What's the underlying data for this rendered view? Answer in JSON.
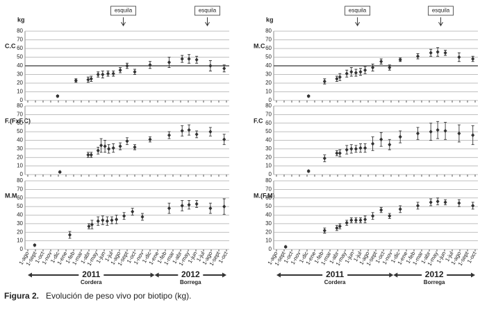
{
  "chart_data": [
    {
      "type": "scatter",
      "title": "C.C",
      "ylabel": "kg",
      "ylim": [
        0,
        80
      ],
      "yticks": [
        0,
        10,
        20,
        30,
        40,
        50,
        60,
        70,
        80
      ],
      "xlim": [
        0,
        26
      ],
      "xticks": [
        0,
        1,
        2,
        3,
        4,
        5,
        6,
        7,
        8,
        9,
        10,
        11,
        12,
        13,
        14,
        15,
        16,
        17,
        18,
        19,
        20,
        21,
        22,
        23,
        24,
        25,
        26
      ],
      "grid": true,
      "reference_line": 40,
      "color": "#333333",
      "annotations": [
        {
          "text": "esquila",
          "x": 12.5
        },
        {
          "text": "esquila",
          "x": 23.5
        }
      ],
      "x": [
        3.9,
        6.3,
        7.9,
        8.3,
        9.2,
        9.8,
        10.5,
        11.2,
        12.1,
        13.0,
        14.0,
        16.0,
        18.5,
        20.2,
        21.1,
        22.1,
        23.9,
        25.7
      ],
      "values": [
        5,
        23,
        24,
        25,
        30,
        30,
        31,
        31,
        35,
        40,
        33,
        41,
        44,
        48,
        48,
        47,
        40,
        37
      ],
      "errors": [
        1,
        2,
        3,
        3,
        3,
        4,
        3,
        3,
        3,
        3,
        3,
        4,
        6,
        4,
        5,
        4,
        6,
        4
      ]
    },
    {
      "type": "scatter",
      "title": "M.C",
      "ylabel": "kg",
      "ylim": [
        0,
        80
      ],
      "yticks": [
        0,
        10,
        20,
        30,
        40,
        50,
        60,
        70,
        80
      ],
      "xlim": [
        0,
        26
      ],
      "xticks": [
        0,
        1,
        2,
        3,
        4,
        5,
        6,
        7,
        8,
        9,
        10,
        11,
        12,
        13,
        14,
        15,
        16,
        17,
        18,
        19,
        20,
        21,
        22,
        23,
        24,
        25,
        26
      ],
      "grid": true,
      "reference_line": 40,
      "color": "#333333",
      "annotations": [
        {
          "text": "esquila",
          "x": 10.6
        },
        {
          "text": "esquila",
          "x": 21.5
        }
      ],
      "x": [
        4.2,
        6.3,
        7.9,
        8.3,
        9.2,
        9.8,
        10.4,
        11.0,
        11.6,
        12.6,
        13.7,
        14.8,
        16.2,
        18.5,
        20.2,
        21.1,
        22.1,
        23.9,
        25.7
      ],
      "values": [
        5,
        22,
        25,
        27,
        31,
        33,
        32,
        33,
        35,
        38,
        45,
        38,
        47,
        51,
        55,
        56,
        55,
        50,
        48
      ],
      "errors": [
        1,
        3,
        3,
        4,
        4,
        5,
        4,
        4,
        4,
        4,
        3,
        3,
        2,
        3,
        4,
        5,
        3,
        5,
        3
      ]
    },
    {
      "type": "scatter",
      "title": "F.(FxF.C)",
      "ylim": [
        0,
        80
      ],
      "yticks": [
        0,
        10,
        20,
        30,
        40,
        50,
        60,
        70,
        80
      ],
      "xlim": [
        0,
        26
      ],
      "xticks": [
        0,
        1,
        2,
        3,
        4,
        5,
        6,
        7,
        8,
        9,
        10,
        11,
        12,
        13,
        14,
        15,
        16,
        17,
        18,
        19,
        20,
        21,
        22,
        23,
        24,
        25,
        26
      ],
      "grid": true,
      "color": "#333333",
      "x": [
        4.2,
        7.9,
        8.3,
        9.2,
        9.6,
        10.1,
        10.6,
        11.2,
        12.1,
        13.0,
        14.0,
        16.0,
        18.5,
        20.2,
        21.1,
        22.1,
        23.9,
        25.7
      ],
      "values": [
        3,
        23,
        23,
        28,
        34,
        33,
        30,
        31,
        33,
        39,
        32,
        41,
        46,
        51,
        52,
        47,
        50,
        41
      ],
      "errors": [
        1,
        3,
        3,
        4,
        8,
        7,
        5,
        5,
        4,
        4,
        3,
        3,
        4,
        6,
        6,
        4,
        5,
        6
      ]
    },
    {
      "type": "scatter",
      "title": "F.C",
      "ylim": [
        0,
        80
      ],
      "yticks": [
        0,
        10,
        20,
        30,
        40,
        50,
        60,
        70,
        80
      ],
      "xlim": [
        0,
        26
      ],
      "xticks": [
        0,
        1,
        2,
        3,
        4,
        5,
        6,
        7,
        8,
        9,
        10,
        11,
        12,
        13,
        14,
        15,
        16,
        17,
        18,
        19,
        20,
        21,
        22,
        23,
        24,
        25,
        26
      ],
      "grid": true,
      "color": "#333333",
      "x": [
        4.2,
        6.3,
        7.9,
        8.3,
        9.2,
        9.8,
        10.4,
        11.0,
        11.6,
        12.6,
        13.7,
        14.8,
        16.2,
        18.5,
        20.2,
        21.1,
        22.1,
        23.9,
        25.7
      ],
      "values": [
        4,
        19,
        25,
        25,
        29,
        30,
        30,
        31,
        31,
        36,
        41,
        35,
        44,
        48,
        50,
        52,
        51,
        48,
        46
      ],
      "errors": [
        1,
        4,
        3,
        4,
        5,
        5,
        4,
        5,
        5,
        8,
        8,
        6,
        7,
        7,
        10,
        10,
        10,
        10,
        11
      ]
    },
    {
      "type": "scatter",
      "title": "M.M",
      "ylim": [
        0,
        80
      ],
      "yticks": [
        0,
        10,
        20,
        30,
        40,
        50,
        60,
        70,
        80
      ],
      "xlim": [
        0,
        26
      ],
      "grid": true,
      "color": "#333333",
      "xticks": [
        {
          "value": 0,
          "label": "1-ago"
        },
        {
          "value": 1,
          "label": "1-sept"
        },
        {
          "value": 2,
          "label": "1-oct"
        },
        {
          "value": 3,
          "label": "1-nov"
        },
        {
          "value": 4,
          "label": "1-dic"
        },
        {
          "value": 5,
          "label": "1-ene"
        },
        {
          "value": 6,
          "label": "1-feb"
        },
        {
          "value": 7,
          "label": "1-mar"
        },
        {
          "value": 8,
          "label": "1-abr"
        },
        {
          "value": 9,
          "label": "1-may"
        },
        {
          "value": 10,
          "label": "1-jun"
        },
        {
          "value": 11,
          "label": "1-jul"
        },
        {
          "value": 12,
          "label": "1-ago"
        },
        {
          "value": 13,
          "label": "1-sept"
        },
        {
          "value": 14,
          "label": "1-oct"
        },
        {
          "value": 15,
          "label": "1-nov"
        },
        {
          "value": 16,
          "label": "1-dic"
        },
        {
          "value": 17,
          "label": "1-ene"
        },
        {
          "value": 18,
          "label": "1-feb"
        },
        {
          "value": 19,
          "label": "1-mar"
        },
        {
          "value": 20,
          "label": "1-abr"
        },
        {
          "value": 21,
          "label": "1-may"
        },
        {
          "value": 22,
          "label": "1-jun"
        },
        {
          "value": 23,
          "label": "1-jul"
        },
        {
          "value": 24,
          "label": "1-ago"
        },
        {
          "value": 25,
          "label": "1-sept"
        },
        {
          "value": 26,
          "label": "1-oct"
        }
      ],
      "periods": [
        {
          "label": "2011",
          "sublabel": "Cordera",
          "start": 0,
          "end": 16.6
        },
        {
          "label": "2012",
          "sublabel": "Borrega",
          "start": 16.6,
          "end": 26
        }
      ],
      "x": [
        0.9,
        5.5,
        8.0,
        8.4,
        9.2,
        9.8,
        10.4,
        11.0,
        11.6,
        12.6,
        13.7,
        15.0,
        18.5,
        20.2,
        21.1,
        22.1,
        23.9,
        25.7
      ],
      "values": [
        5,
        17,
        27,
        29,
        33,
        34,
        33,
        34,
        35,
        39,
        44,
        38,
        48,
        51,
        52,
        53,
        48,
        50
      ],
      "errors": [
        1,
        4,
        3,
        5,
        5,
        5,
        5,
        4,
        5,
        4,
        4,
        4,
        6,
        6,
        5,
        4,
        6,
        9
      ]
    },
    {
      "type": "scatter",
      "title": "M.(F.M)",
      "ylim": [
        0,
        80
      ],
      "yticks": [
        0,
        10,
        20,
        30,
        40,
        50,
        60,
        70,
        80
      ],
      "xlim": [
        0,
        26
      ],
      "grid": true,
      "color": "#333333",
      "xticks": [
        {
          "value": 0,
          "label": "1-ago"
        },
        {
          "value": 1,
          "label": "1-sept"
        },
        {
          "value": 2,
          "label": "1-oct"
        },
        {
          "value": 3,
          "label": "1-nov"
        },
        {
          "value": 4,
          "label": "1-dic"
        },
        {
          "value": 5,
          "label": "1-ene"
        },
        {
          "value": 6,
          "label": "1-feb"
        },
        {
          "value": 7,
          "label": "1-mar"
        },
        {
          "value": 8,
          "label": "1-abr"
        },
        {
          "value": 9,
          "label": "1-may"
        },
        {
          "value": 10,
          "label": "1-jun"
        },
        {
          "value": 11,
          "label": "1-jul"
        },
        {
          "value": 12,
          "label": "1-ago"
        },
        {
          "value": 13,
          "label": "1-sept"
        },
        {
          "value": 14,
          "label": "1-oct"
        },
        {
          "value": 15,
          "label": "1-nov"
        },
        {
          "value": 16,
          "label": "1-dic"
        },
        {
          "value": 17,
          "label": "1-ene"
        },
        {
          "value": 18,
          "label": "1-feb"
        },
        {
          "value": 19,
          "label": "1-mar"
        },
        {
          "value": 20,
          "label": "1-abr"
        },
        {
          "value": 21,
          "label": "1-may"
        },
        {
          "value": 22,
          "label": "1-jun"
        },
        {
          "value": 23,
          "label": "1-jul"
        },
        {
          "value": 24,
          "label": "1-ago"
        },
        {
          "value": 25,
          "label": "1-sept"
        },
        {
          "value": 26,
          "label": "1-oct"
        }
      ],
      "periods": [
        {
          "label": "2011",
          "sublabel": "Cordera",
          "start": 0,
          "end": 15.3
        },
        {
          "label": "2012",
          "sublabel": "Borrega",
          "start": 15.3,
          "end": 26
        }
      ],
      "x": [
        1.2,
        6.3,
        7.9,
        8.3,
        9.2,
        9.8,
        10.4,
        11.0,
        11.6,
        12.6,
        13.7,
        14.8,
        16.2,
        18.5,
        20.2,
        21.1,
        22.1,
        23.9,
        25.7
      ],
      "values": [
        3,
        22,
        25,
        27,
        31,
        34,
        34,
        34,
        35,
        39,
        46,
        39,
        47,
        51,
        55,
        56,
        55,
        54,
        51
      ],
      "errors": [
        1,
        3,
        3,
        3,
        3,
        3,
        3,
        3,
        4,
        4,
        3,
        3,
        4,
        4,
        4,
        4,
        3,
        4,
        4
      ]
    }
  ],
  "caption": {
    "label": "Figura 2.",
    "text": "Evolución de peso vivo por biotipo (kg)."
  }
}
